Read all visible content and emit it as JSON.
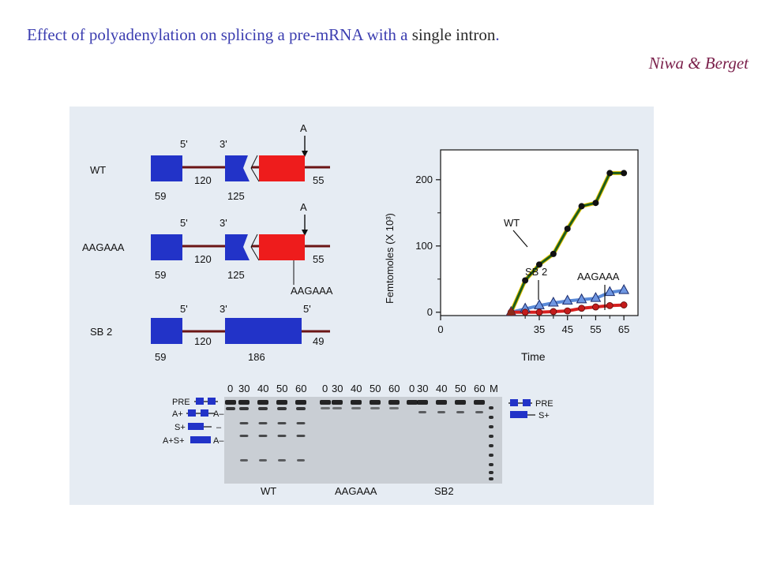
{
  "title": {
    "part1": "Effect of polyadenylation on splicing a pre-mRNA with a",
    "part2": " single intron",
    "period": "."
  },
  "author": "Niwa & Berget",
  "constructs": [
    {
      "name": "WT",
      "site5": "5'",
      "site3": "3'",
      "poly_a": "A",
      "exon1_len": "59",
      "intron_len": "120",
      "exon2_len": "125",
      "tail_len": "55"
    },
    {
      "name": "AAGAAA",
      "site5": "5'",
      "site3": "3'",
      "poly_a": "A",
      "exon1_len": "59",
      "intron_len": "120",
      "exon2_len": "125",
      "tail_len": "55",
      "mutation": "AAGAAA"
    },
    {
      "name": "SB 2",
      "site5": "5'",
      "site3": "3'",
      "site5b": "5'",
      "exon1_len": "59",
      "intron_len": "120",
      "exon2_len": "186",
      "tail_len": "49"
    }
  ],
  "chart_data": {
    "type": "line",
    "xlabel": "Time",
    "ylabel": "Femtomoles (X 10³)",
    "x_ticks": [
      0,
      35,
      45,
      55,
      65
    ],
    "x_tick_labels": [
      "0",
      "35",
      "45",
      "55",
      "65"
    ],
    "y_ticks": [
      0,
      100,
      200
    ],
    "y_tick_labels": [
      "0",
      "100",
      "200"
    ],
    "xlim": [
      0,
      70
    ],
    "ylim": [
      -5,
      245
    ],
    "annotations": [
      "WT",
      "SB 2",
      "AAGAAA"
    ],
    "series": [
      {
        "name": "WT",
        "marker": "circle",
        "color": "#1d5e1d",
        "x": [
          25,
          30,
          35,
          40,
          45,
          50,
          55,
          60,
          65
        ],
        "y": [
          0,
          48,
          72,
          88,
          126,
          160,
          165,
          210,
          210
        ]
      },
      {
        "name": "SB 2",
        "marker": "triangle",
        "color": "#5a8ad8",
        "x": [
          25,
          30,
          35,
          40,
          45,
          50,
          55,
          60,
          65
        ],
        "y": [
          0,
          5,
          10,
          14,
          17,
          19,
          21,
          30,
          33
        ]
      },
      {
        "name": "AAGAAA",
        "marker": "circle",
        "color": "#d61f1f",
        "x": [
          25,
          30,
          35,
          40,
          45,
          50,
          55,
          60,
          65
        ],
        "y": [
          0,
          0,
          0,
          1,
          2,
          6,
          8,
          10,
          11
        ]
      }
    ]
  },
  "gel": {
    "lane_groups": [
      {
        "name": "WT",
        "times": [
          "0",
          "30",
          "40",
          "50",
          "60"
        ]
      },
      {
        "name": "AAGAAA",
        "times": [
          "0",
          "30",
          "40",
          "50",
          "60"
        ]
      },
      {
        "name": "SB2",
        "times": [
          "0",
          "30",
          "40",
          "50",
          "60"
        ]
      }
    ],
    "marker_lane": "M",
    "left_labels": [
      "PRE",
      "A+",
      "A–",
      "S+",
      "–",
      "A+S+",
      "A–"
    ],
    "right_labels": [
      "PRE",
      "S+"
    ]
  },
  "colors": {
    "exon_blue": "#2233c8",
    "exon_red": "#ee1c1c",
    "intron": "#6b1515",
    "wt_line": "#1d5e1d",
    "sb2_line": "#5a8ad8",
    "aagaaa_line": "#d61f1f"
  }
}
